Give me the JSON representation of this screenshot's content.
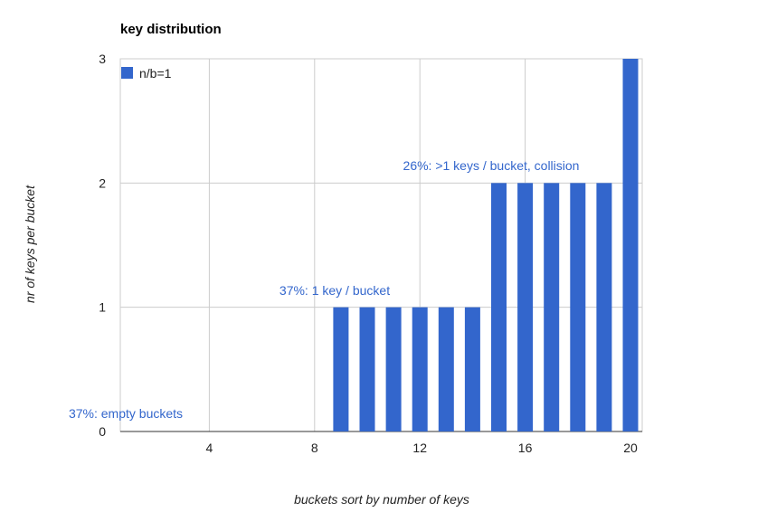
{
  "chart_data": {
    "type": "bar",
    "title": "key distribution",
    "xlabel": "buckets sort by number of keys",
    "ylabel": "nr of keys per bucket",
    "xlim": [
      1,
      20
    ],
    "ylim": [
      0,
      3
    ],
    "x_ticks": [
      "4",
      "8",
      "12",
      "16",
      "20"
    ],
    "y_ticks": [
      "0",
      "1",
      "2",
      "3"
    ],
    "grid": true,
    "legend_position": "top-left",
    "series": [
      {
        "name": "n/b=1",
        "color": "#3366cc",
        "x": [
          1,
          2,
          3,
          4,
          5,
          6,
          7,
          8,
          9,
          10,
          11,
          12,
          13,
          14,
          15,
          16,
          17,
          18,
          19,
          20
        ],
        "values": [
          0,
          0,
          0,
          0,
          0,
          0,
          0,
          0,
          1,
          1,
          1,
          1,
          1,
          1,
          2,
          2,
          2,
          2,
          2,
          3
        ]
      }
    ],
    "annotations": [
      {
        "text": "37%: empty buckets",
        "x": 1,
        "y": 0
      },
      {
        "text": "37%: 1 key / bucket",
        "x": 9,
        "y": 1
      },
      {
        "text": "26%: >1 keys / bucket, collision",
        "x": 15,
        "y": 2
      }
    ],
    "annotation_color": "#3366cc"
  }
}
